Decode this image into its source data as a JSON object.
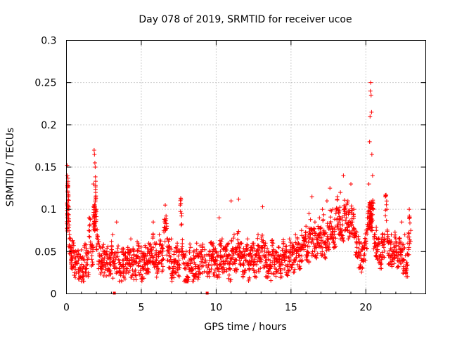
{
  "chart_data": {
    "type": "scatter",
    "title": "Day 078 of 2019, SRMTID for receiver ucoe",
    "xlabel": "GPS time / hours",
    "ylabel": "SRMTID / TECUs",
    "xlim": [
      0,
      24
    ],
    "ylim": [
      0,
      0.3
    ],
    "xticks": [
      0,
      5,
      10,
      15,
      20
    ],
    "xtick_labels": [
      "0",
      "5",
      "10",
      "15",
      "20"
    ],
    "yticks": [
      0,
      0.05,
      0.1,
      0.15,
      0.2,
      0.25,
      0.3
    ],
    "ytick_labels": [
      "0",
      "0.05",
      "0.1",
      "0.15",
      "0.2",
      "0.25",
      "0.3"
    ],
    "grid": true,
    "marker": "+",
    "color": "#ff0000",
    "series": [
      {
        "name": "SRMTID",
        "points": [
          [
            0.05,
            0.152
          ],
          [
            0.06,
            0.14
          ],
          [
            0.08,
            0.128
          ],
          [
            0.1,
            0.12
          ],
          [
            0.12,
            0.118
          ],
          [
            0.15,
            0.1
          ],
          [
            0.2,
            0.07
          ],
          [
            0.3,
            0.05
          ],
          [
            0.35,
            0.04
          ],
          [
            0.4,
            0.062
          ],
          [
            0.5,
            0.045
          ],
          [
            0.6,
            0.035
          ],
          [
            0.7,
            0.05
          ],
          [
            0.8,
            0.04
          ],
          [
            0.9,
            0.03
          ],
          [
            1.0,
            0.052
          ],
          [
            1.1,
            0.025
          ],
          [
            1.2,
            0.04
          ],
          [
            1.3,
            0.058
          ],
          [
            1.4,
            0.035
          ],
          [
            1.5,
            0.075
          ],
          [
            1.6,
            0.088
          ],
          [
            1.7,
            0.045
          ],
          [
            1.8,
            0.13
          ],
          [
            1.85,
            0.17
          ],
          [
            1.87,
            0.165
          ],
          [
            1.9,
            0.155
          ],
          [
            1.92,
            0.15
          ],
          [
            1.95,
            0.12
          ],
          [
            2.0,
            0.1
          ],
          [
            2.1,
            0.06
          ],
          [
            2.2,
            0.045
          ],
          [
            2.3,
            0.038
          ],
          [
            2.4,
            0.055
          ],
          [
            2.5,
            0.04
          ],
          [
            2.6,
            0.032
          ],
          [
            2.7,
            0.05
          ],
          [
            2.8,
            0.042
          ],
          [
            2.9,
            0.035
          ],
          [
            3.0,
            0.048
          ],
          [
            3.1,
            0.07
          ],
          [
            3.2,
            0.03
          ],
          [
            3.35,
            0.085
          ],
          [
            3.5,
            0.04
          ],
          [
            3.6,
            0.025
          ],
          [
            3.7,
            0.05
          ],
          [
            3.8,
            0.035
          ],
          [
            3.9,
            0.045
          ],
          [
            4.0,
            0.03
          ],
          [
            4.1,
            0.055
          ],
          [
            4.2,
            0.04
          ],
          [
            4.3,
            0.065
          ],
          [
            4.4,
            0.035
          ],
          [
            4.5,
            0.05
          ],
          [
            4.6,
            0.028
          ],
          [
            4.7,
            0.045
          ],
          [
            4.8,
            0.06
          ],
          [
            4.9,
            0.038
          ],
          [
            5.0,
            0.05
          ],
          [
            5.1,
            0.03
          ],
          [
            5.2,
            0.045
          ],
          [
            5.3,
            0.055
          ],
          [
            5.4,
            0.035
          ],
          [
            5.5,
            0.06
          ],
          [
            5.6,
            0.04
          ],
          [
            5.7,
            0.052
          ],
          [
            5.8,
            0.085
          ],
          [
            5.9,
            0.045
          ],
          [
            6.0,
            0.06
          ],
          [
            6.1,
            0.035
          ],
          [
            6.2,
            0.07
          ],
          [
            6.3,
            0.05
          ],
          [
            6.4,
            0.04
          ],
          [
            6.5,
            0.075
          ],
          [
            6.6,
            0.105
          ],
          [
            6.7,
            0.08
          ],
          [
            6.8,
            0.055
          ],
          [
            6.9,
            0.045
          ],
          [
            7.0,
            0.065
          ],
          [
            7.1,
            0.03
          ],
          [
            7.2,
            0.05
          ],
          [
            7.3,
            0.04
          ],
          [
            7.4,
            0.06
          ],
          [
            7.5,
            0.035
          ],
          [
            7.6,
            0.105
          ],
          [
            7.7,
            0.095
          ],
          [
            7.8,
            0.045
          ],
          [
            7.9,
            0.03
          ],
          [
            8.0,
            0.05
          ],
          [
            8.1,
            0.02
          ],
          [
            8.2,
            0.04
          ],
          [
            8.3,
            0.055
          ],
          [
            8.4,
            0.028
          ],
          [
            8.5,
            0.045
          ],
          [
            8.6,
            0.035
          ],
          [
            8.7,
            0.06
          ],
          [
            8.8,
            0.03
          ],
          [
            8.9,
            0.048
          ],
          [
            9.0,
            0.038
          ],
          [
            9.1,
            0.055
          ],
          [
            9.3,
            0.04
          ],
          [
            9.5,
            0.035
          ],
          [
            9.6,
            0.05
          ],
          [
            9.7,
            0.042
          ],
          [
            9.8,
            0.06
          ],
          [
            9.9,
            0.035
          ],
          [
            10.0,
            0.05
          ],
          [
            10.1,
            0.03
          ],
          [
            10.2,
            0.09
          ],
          [
            10.3,
            0.045
          ],
          [
            10.4,
            0.065
          ],
          [
            10.5,
            0.035
          ],
          [
            10.6,
            0.055
          ],
          [
            10.7,
            0.04
          ],
          [
            10.8,
            0.06
          ],
          [
            10.9,
            0.03
          ],
          [
            11.0,
            0.11
          ],
          [
            11.1,
            0.05
          ],
          [
            11.2,
            0.07
          ],
          [
            11.3,
            0.04
          ],
          [
            11.4,
            0.055
          ],
          [
            11.5,
            0.112
          ],
          [
            11.6,
            0.045
          ],
          [
            11.7,
            0.06
          ],
          [
            11.8,
            0.035
          ],
          [
            11.9,
            0.05
          ],
          [
            12.0,
            0.04
          ],
          [
            12.1,
            0.065
          ],
          [
            12.2,
            0.03
          ],
          [
            12.3,
            0.055
          ],
          [
            12.4,
            0.045
          ],
          [
            12.5,
            0.06
          ],
          [
            12.6,
            0.035
          ],
          [
            12.7,
            0.05
          ],
          [
            12.8,
            0.07
          ],
          [
            12.9,
            0.04
          ],
          [
            13.0,
            0.055
          ],
          [
            13.1,
            0.103
          ],
          [
            13.2,
            0.045
          ],
          [
            13.3,
            0.06
          ],
          [
            13.4,
            0.035
          ],
          [
            13.5,
            0.05
          ],
          [
            13.6,
            0.03
          ],
          [
            13.7,
            0.045
          ],
          [
            13.8,
            0.06
          ],
          [
            13.9,
            0.035
          ],
          [
            14.0,
            0.05
          ],
          [
            14.1,
            0.04
          ],
          [
            14.2,
            0.055
          ],
          [
            14.3,
            0.03
          ],
          [
            14.4,
            0.045
          ],
          [
            14.5,
            0.06
          ],
          [
            14.6,
            0.04
          ],
          [
            14.7,
            0.05
          ],
          [
            14.8,
            0.035
          ],
          [
            14.9,
            0.065
          ],
          [
            15.0,
            0.045
          ],
          [
            15.1,
            0.055
          ],
          [
            15.2,
            0.04
          ],
          [
            15.3,
            0.07
          ],
          [
            15.4,
            0.05
          ],
          [
            15.5,
            0.06
          ],
          [
            15.6,
            0.045
          ],
          [
            15.7,
            0.075
          ],
          [
            15.8,
            0.055
          ],
          [
            15.9,
            0.065
          ],
          [
            16.0,
            0.08
          ],
          [
            16.1,
            0.05
          ],
          [
            16.2,
            0.095
          ],
          [
            16.3,
            0.07
          ],
          [
            16.4,
            0.115
          ],
          [
            16.5,
            0.06
          ],
          [
            16.6,
            0.085
          ],
          [
            16.7,
            0.055
          ],
          [
            16.8,
            0.07
          ],
          [
            16.9,
            0.09
          ],
          [
            17.0,
            0.06
          ],
          [
            17.1,
            0.1
          ],
          [
            17.2,
            0.075
          ],
          [
            17.3,
            0.055
          ],
          [
            17.4,
            0.11
          ],
          [
            17.5,
            0.065
          ],
          [
            17.6,
            0.125
          ],
          [
            17.7,
            0.08
          ],
          [
            17.8,
            0.1
          ],
          [
            17.9,
            0.07
          ],
          [
            18.0,
            0.095
          ],
          [
            18.1,
            0.115
          ],
          [
            18.2,
            0.085
          ],
          [
            18.3,
            0.12
          ],
          [
            18.4,
            0.075
          ],
          [
            18.5,
            0.14
          ],
          [
            18.6,
            0.1
          ],
          [
            18.7,
            0.09
          ],
          [
            18.8,
            0.11
          ],
          [
            18.9,
            0.08
          ],
          [
            19.0,
            0.13
          ],
          [
            19.1,
            0.085
          ],
          [
            19.2,
            0.1
          ],
          [
            19.3,
            0.07
          ],
          [
            19.4,
            0.055
          ],
          [
            19.5,
            0.065
          ],
          [
            19.6,
            0.045
          ],
          [
            19.7,
            0.06
          ],
          [
            19.8,
            0.04
          ],
          [
            19.9,
            0.055
          ],
          [
            20.0,
            0.065
          ],
          [
            20.1,
            0.09
          ],
          [
            20.2,
            0.13
          ],
          [
            20.25,
            0.18
          ],
          [
            20.28,
            0.21
          ],
          [
            20.3,
            0.24
          ],
          [
            20.32,
            0.25
          ],
          [
            20.35,
            0.235
          ],
          [
            20.38,
            0.215
          ],
          [
            20.4,
            0.165
          ],
          [
            20.45,
            0.14
          ],
          [
            20.5,
            0.1
          ],
          [
            20.6,
            0.06
          ],
          [
            20.7,
            0.075
          ],
          [
            20.8,
            0.05
          ],
          [
            20.9,
            0.06
          ],
          [
            21.0,
            0.045
          ],
          [
            21.1,
            0.07
          ],
          [
            21.2,
            0.055
          ],
          [
            21.3,
            0.115
          ],
          [
            21.4,
            0.1
          ],
          [
            21.5,
            0.06
          ],
          [
            21.6,
            0.045
          ],
          [
            21.7,
            0.07
          ],
          [
            21.8,
            0.04
          ],
          [
            21.9,
            0.055
          ],
          [
            22.0,
            0.065
          ],
          [
            22.1,
            0.045
          ],
          [
            22.2,
            0.06
          ],
          [
            22.3,
            0.05
          ],
          [
            22.4,
            0.085
          ],
          [
            22.5,
            0.04
          ],
          [
            22.6,
            0.07
          ],
          [
            22.7,
            0.03
          ],
          [
            22.8,
            0.06
          ],
          [
            22.9,
            0.1
          ],
          [
            23.0,
            0.075
          ]
        ]
      }
    ],
    "zero_markers_x": [
      3.2,
      9.4
    ]
  }
}
